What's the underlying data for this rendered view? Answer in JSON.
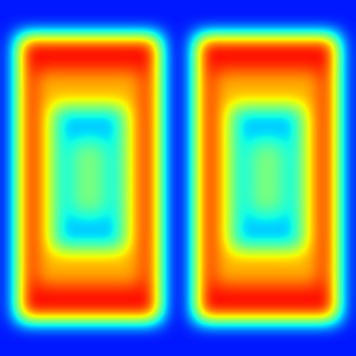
{
  "chart_data": {
    "type": "heatmap",
    "color": "jet",
    "tick_labels": false,
    "color_range": [
      0,
      100
    ],
    "cells": [
      [
        15,
        15,
        15,
        15,
        15,
        15,
        15,
        15,
        15,
        15,
        15,
        15,
        15,
        15,
        15,
        15,
        15,
        15,
        15,
        15
      ],
      [
        15,
        15,
        15,
        15,
        15,
        15,
        15,
        15,
        15,
        15,
        15,
        15,
        15,
        15,
        15,
        15,
        15,
        15,
        15,
        15
      ],
      [
        15,
        90,
        90,
        90,
        90,
        90,
        90,
        90,
        90,
        15,
        15,
        90,
        90,
        90,
        90,
        90,
        90,
        90,
        90,
        15
      ],
      [
        15,
        90,
        90,
        90,
        90,
        90,
        90,
        90,
        90,
        15,
        15,
        90,
        90,
        90,
        90,
        90,
        90,
        90,
        90,
        15
      ],
      [
        15,
        90,
        72,
        72,
        72,
        72,
        72,
        72,
        90,
        15,
        15,
        90,
        72,
        72,
        72,
        72,
        72,
        72,
        90,
        15
      ],
      [
        15,
        90,
        72,
        72,
        72,
        72,
        72,
        72,
        90,
        15,
        15,
        90,
        72,
        72,
        72,
        72,
        72,
        72,
        90,
        15
      ],
      [
        15,
        90,
        72,
        32,
        32,
        32,
        32,
        72,
        90,
        15,
        15,
        90,
        72,
        32,
        32,
        32,
        32,
        72,
        90,
        15
      ],
      [
        15,
        90,
        72,
        32,
        32,
        32,
        32,
        72,
        90,
        15,
        15,
        90,
        72,
        32,
        32,
        32,
        32,
        72,
        90,
        15
      ],
      [
        15,
        90,
        72,
        32,
        50,
        50,
        32,
        72,
        90,
        15,
        15,
        90,
        72,
        32,
        50,
        50,
        32,
        72,
        90,
        15
      ],
      [
        15,
        90,
        72,
        32,
        50,
        50,
        32,
        72,
        90,
        15,
        15,
        90,
        72,
        32,
        50,
        50,
        32,
        72,
        90,
        15
      ],
      [
        15,
        90,
        72,
        32,
        50,
        50,
        32,
        72,
        90,
        15,
        15,
        90,
        72,
        32,
        50,
        50,
        32,
        72,
        90,
        15
      ],
      [
        15,
        90,
        72,
        32,
        50,
        50,
        32,
        72,
        90,
        15,
        15,
        90,
        72,
        32,
        50,
        50,
        32,
        72,
        90,
        15
      ],
      [
        15,
        90,
        72,
        32,
        32,
        32,
        32,
        72,
        90,
        15,
        15,
        90,
        72,
        32,
        32,
        32,
        32,
        72,
        90,
        15
      ],
      [
        15,
        90,
        72,
        32,
        32,
        32,
        32,
        72,
        90,
        15,
        15,
        90,
        72,
        32,
        32,
        32,
        32,
        72,
        90,
        15
      ],
      [
        15,
        90,
        72,
        72,
        72,
        72,
        72,
        72,
        90,
        15,
        15,
        90,
        72,
        72,
        72,
        72,
        72,
        72,
        90,
        15
      ],
      [
        15,
        90,
        72,
        72,
        72,
        72,
        72,
        72,
        90,
        15,
        15,
        90,
        72,
        72,
        72,
        72,
        72,
        72,
        90,
        15
      ],
      [
        15,
        90,
        90,
        90,
        90,
        90,
        90,
        90,
        90,
        15,
        15,
        90,
        90,
        90,
        90,
        90,
        90,
        90,
        90,
        15
      ],
      [
        15,
        90,
        90,
        90,
        90,
        90,
        90,
        90,
        90,
        15,
        15,
        90,
        90,
        90,
        90,
        90,
        90,
        90,
        90,
        15
      ],
      [
        15,
        15,
        15,
        15,
        15,
        15,
        15,
        15,
        15,
        15,
        15,
        15,
        15,
        15,
        15,
        15,
        15,
        15,
        15,
        15
      ],
      [
        15,
        15,
        15,
        15,
        15,
        15,
        15,
        15,
        15,
        15,
        15,
        15,
        15,
        15,
        15,
        15,
        15,
        15,
        15,
        15
      ]
    ]
  }
}
